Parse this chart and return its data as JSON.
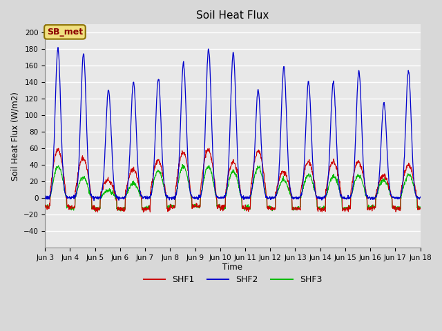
{
  "title": "Soil Heat Flux",
  "ylabel": "Soil Heat Flux (W/m2)",
  "xlabel": "Time",
  "ylim": [
    -60,
    210
  ],
  "yticks": [
    -40,
    -20,
    0,
    20,
    40,
    60,
    80,
    100,
    120,
    140,
    160,
    180,
    200
  ],
  "fig_bg_color": "#d8d8d8",
  "plot_bg_color": "#e8e8e8",
  "shf1_color": "#cc0000",
  "shf2_color": "#0000cc",
  "shf3_color": "#00bb00",
  "legend_label": "SB_met",
  "legend_text_color": "#8B0000",
  "legend_box_fill": "#f0e080",
  "legend_box_edge": "#8B7000",
  "n_days": 15,
  "pts_per_day": 96,
  "x_start_day": 3,
  "x_end_day": 18,
  "xtick_days": [
    3,
    4,
    5,
    6,
    7,
    8,
    9,
    10,
    11,
    12,
    13,
    14,
    15,
    16,
    17,
    18
  ]
}
